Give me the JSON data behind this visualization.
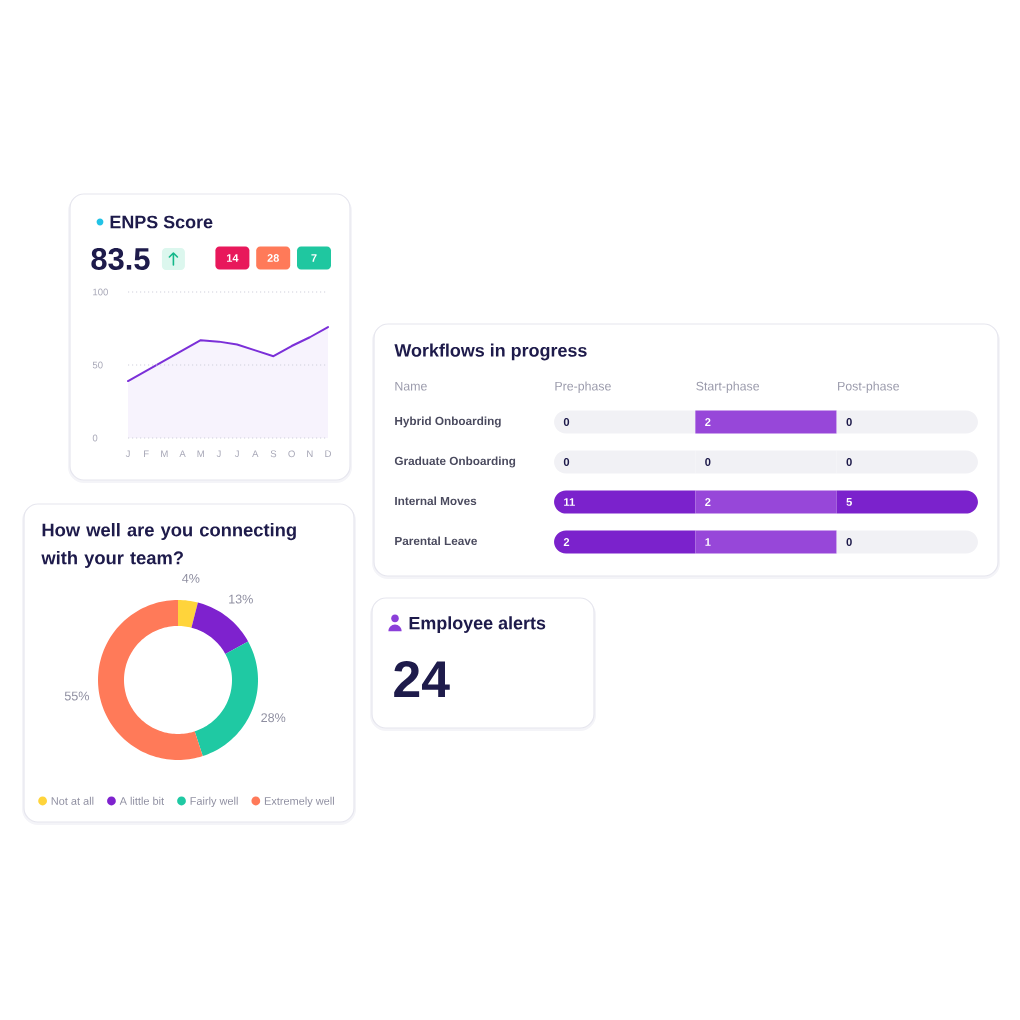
{
  "chart_data": [
    {
      "type": "area",
      "title": "ENPS Score",
      "categories": [
        "J",
        "F",
        "M",
        "A",
        "M",
        "J",
        "J",
        "A",
        "S",
        "O",
        "N",
        "D"
      ],
      "values": [
        39,
        46,
        53,
        60,
        67,
        66,
        64,
        60,
        56,
        63,
        69,
        76
      ],
      "color": "#7b2fd8",
      "ylim": [
        0,
        100
      ],
      "yticks": [
        0,
        50,
        100
      ],
      "grid": "y",
      "annotations": [
        "83.5",
        "14",
        "28",
        "7"
      ]
    },
    {
      "type": "heatmap",
      "title": "Workflows in progress",
      "ylabel": "Name",
      "categories": [
        "Pre-phase",
        "Start-phase",
        "Post-phase"
      ],
      "y_categories": [
        "Hybrid Onboarding",
        "Graduate Onboarding",
        "Internal Moves",
        "Parental Leave"
      ],
      "cells": [
        [
          0,
          2,
          0
        ],
        [
          0,
          0,
          0
        ],
        [
          11,
          2,
          5
        ],
        [
          2,
          1,
          0
        ]
      ],
      "data_labels": true
    },
    {
      "type": "donut",
      "title": "How well are you connecting with your team?",
      "categories": [
        "Not at all",
        "A little bit",
        "Fairly well",
        "Extremely well"
      ],
      "values": [
        4,
        13,
        28,
        55
      ],
      "colors": [
        "#ffd43b",
        "#7e22ce",
        "#1fc9a3",
        "#ff7a59"
      ],
      "value_labels": [
        "4%",
        "13%",
        "28%",
        "55%"
      ],
      "legend": "bottom"
    },
    {
      "type": "other",
      "title": "Employee alerts",
      "annotations": [
        "24"
      ]
    }
  ]
}
